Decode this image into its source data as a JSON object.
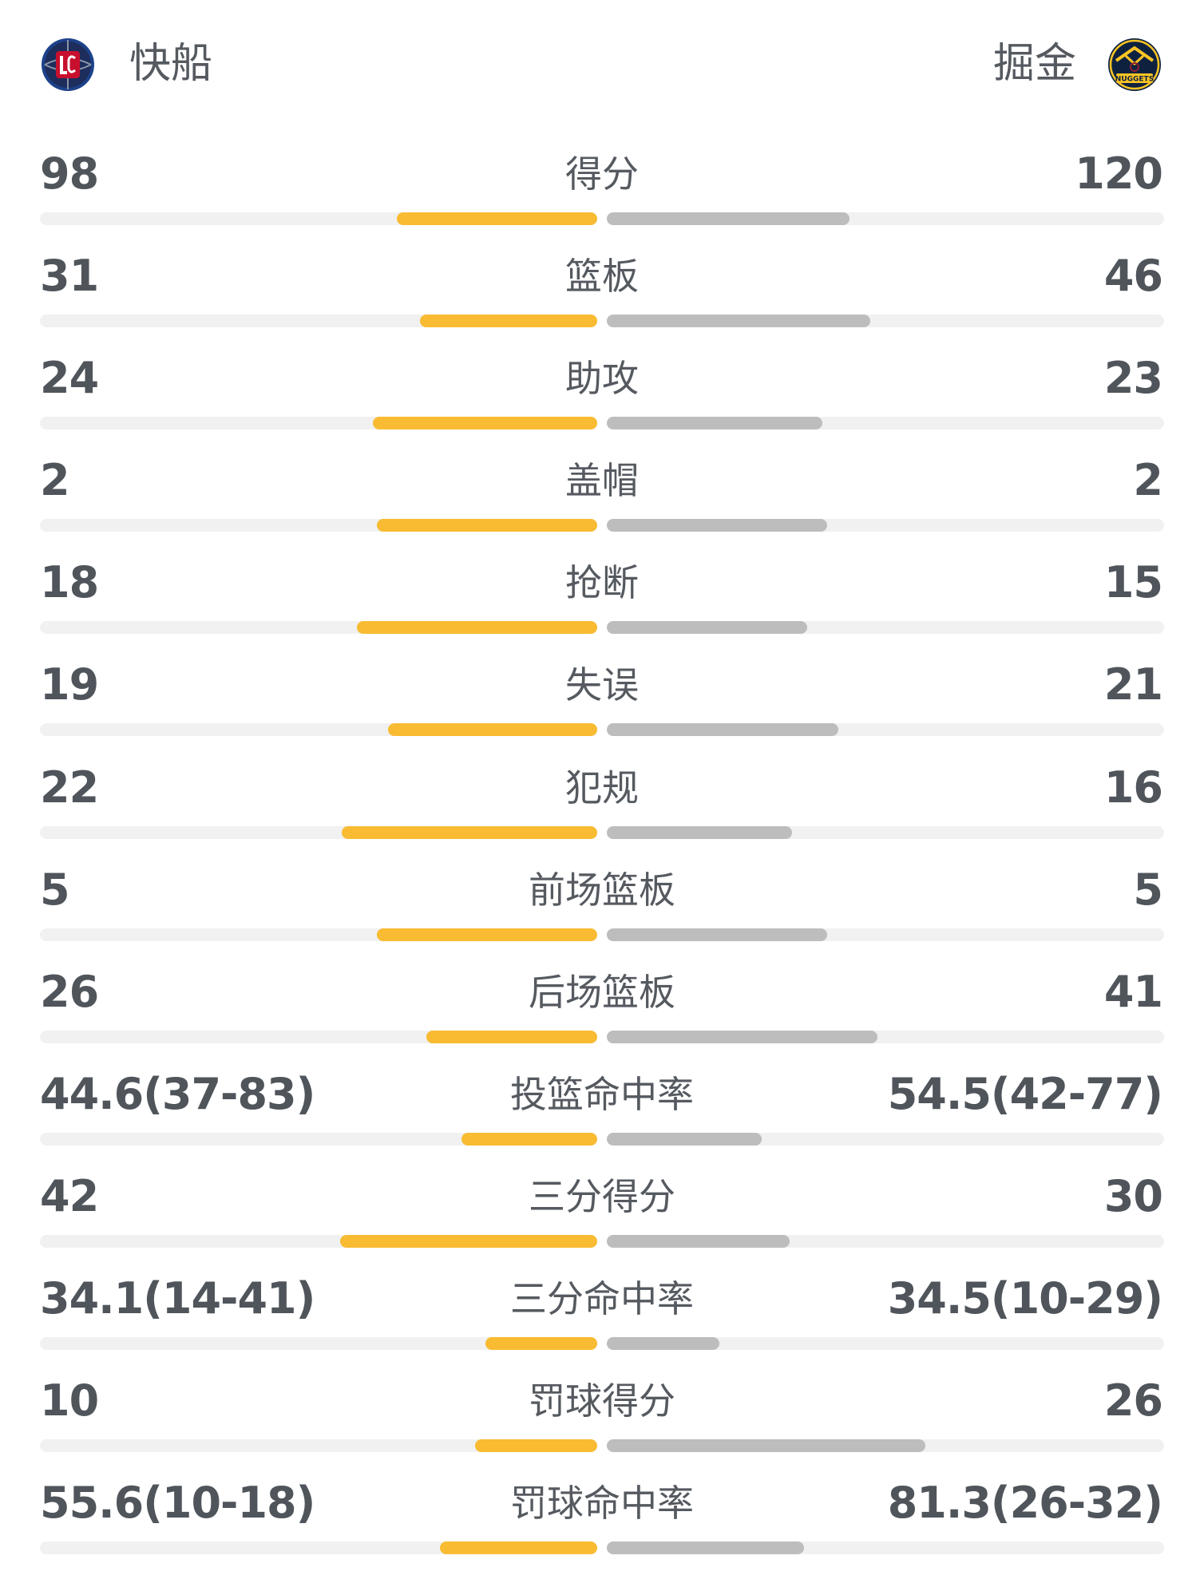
{
  "teams": {
    "home": {
      "name": "快船",
      "logo_icon": "clippers-logo"
    },
    "away": {
      "name": "掘金",
      "logo_icon": "nuggets-logo",
      "logo_text": "NUGGETS"
    }
  },
  "colors": {
    "home_bar": "#f8bb32",
    "away_bar": "#bdbdbd",
    "track": "#f1f1f1",
    "text": "#4f555b"
  },
  "stats": [
    {
      "label": "得分",
      "home": "98",
      "away": "120",
      "home_fill": 0.36,
      "away_fill": 0.435
    },
    {
      "label": "篮板",
      "home": "31",
      "away": "46",
      "home_fill": 0.318,
      "away_fill": 0.473
    },
    {
      "label": "助攻",
      "home": "24",
      "away": "23",
      "home_fill": 0.403,
      "away_fill": 0.387
    },
    {
      "label": "盖帽",
      "home": "2",
      "away": "2",
      "home_fill": 0.395,
      "away_fill": 0.395
    },
    {
      "label": "抢断",
      "home": "18",
      "away": "15",
      "home_fill": 0.431,
      "away_fill": 0.36
    },
    {
      "label": "失误",
      "home": "19",
      "away": "21",
      "home_fill": 0.375,
      "away_fill": 0.415
    },
    {
      "label": "犯规",
      "home": "22",
      "away": "16",
      "home_fill": 0.459,
      "away_fill": 0.333
    },
    {
      "label": "前场篮板",
      "home": "5",
      "away": "5",
      "home_fill": 0.395,
      "away_fill": 0.395
    },
    {
      "label": "后场篮板",
      "home": "26",
      "away": "41",
      "home_fill": 0.306,
      "away_fill": 0.485
    },
    {
      "label": "投篮命中率",
      "home": "44.6(37-83)",
      "away": "54.5(42-77)",
      "home_fill": 0.243,
      "away_fill": 0.278
    },
    {
      "label": "三分得分",
      "home": "42",
      "away": "30",
      "home_fill": 0.462,
      "away_fill": 0.328
    },
    {
      "label": "三分命中率",
      "home": "34.1(14-41)",
      "away": "34.5(10-29)",
      "home_fill": 0.2,
      "away_fill": 0.202
    },
    {
      "label": "罚球得分",
      "home": "10",
      "away": "26",
      "home_fill": 0.219,
      "away_fill": 0.571
    },
    {
      "label": "罚球命中率",
      "home": "55.6(10-18)",
      "away": "81.3(26-32)",
      "home_fill": 0.282,
      "away_fill": 0.354
    }
  ]
}
